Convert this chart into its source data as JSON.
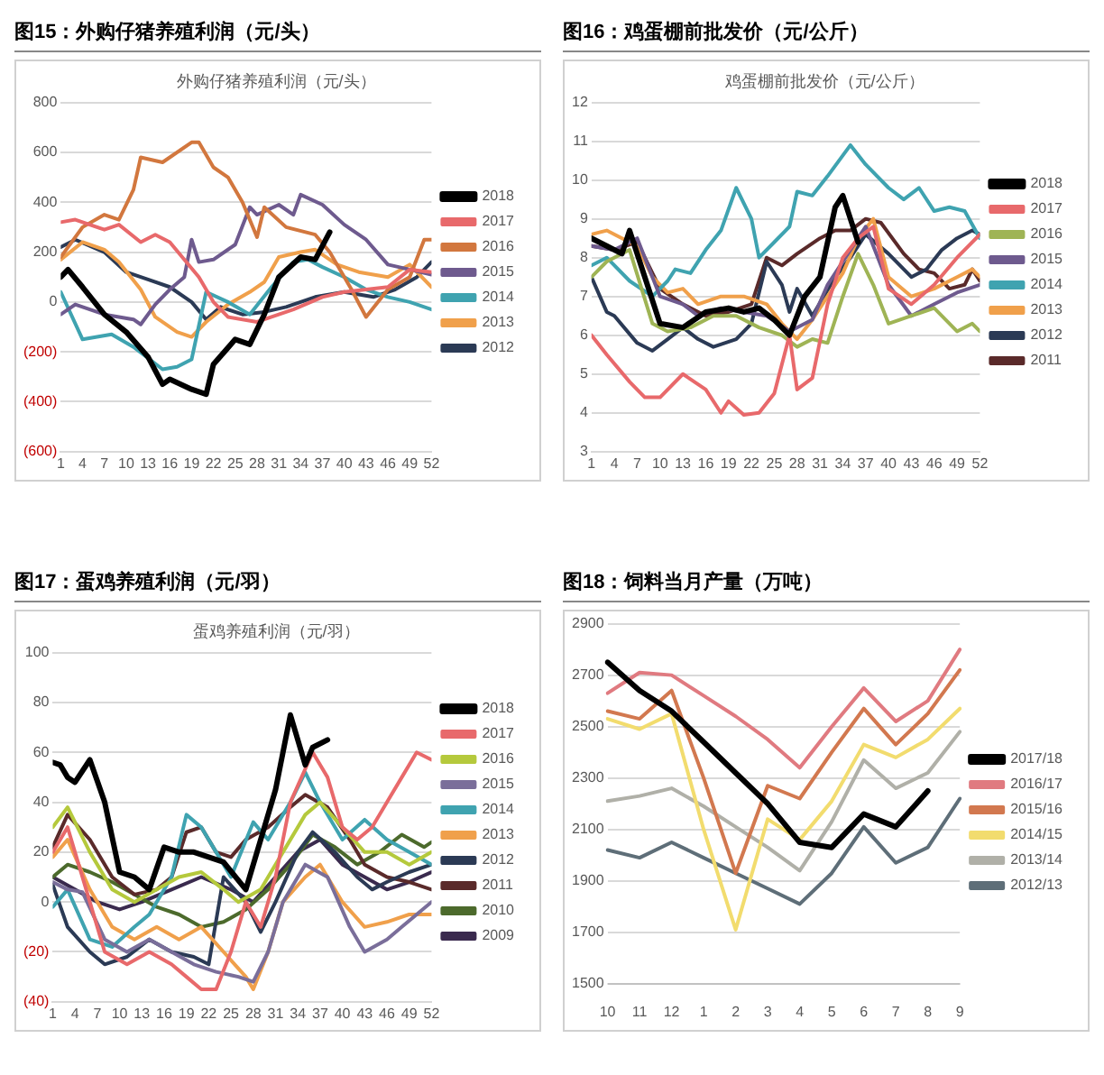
{
  "chart_data": [
    {
      "type": "line",
      "title": "图15：外购仔猪养殖利润（元/头）",
      "subtitle": "外购仔猪养殖利润（元/头）",
      "xlim": [
        1,
        52
      ],
      "xticks": [
        1,
        4,
        7,
        10,
        13,
        16,
        19,
        22,
        25,
        28,
        31,
        34,
        37,
        40,
        43,
        46,
        49,
        52
      ],
      "ylim": [
        -600,
        800
      ],
      "yticks": [
        {
          "value": -600,
          "label": "(600)"
        },
        {
          "value": -400,
          "label": "(400)"
        },
        {
          "value": -200,
          "label": "(200)"
        },
        0,
        200,
        400,
        600,
        800
      ],
      "grid": "y",
      "legend": "right",
      "series": [
        {
          "name": "2018",
          "color": "#000000",
          "x": [
            1,
            2,
            4,
            7,
            10,
            13,
            15,
            16,
            19,
            21,
            22,
            25,
            27,
            29,
            31,
            34,
            36,
            38
          ],
          "values": [
            100,
            130,
            60,
            -50,
            -120,
            -220,
            -330,
            -310,
            -350,
            -370,
            -250,
            -150,
            -170,
            -50,
            100,
            180,
            170,
            280
          ]
        },
        {
          "name": "2017",
          "color": "#e8696b",
          "x": [
            1,
            3,
            7,
            9,
            12,
            14,
            16,
            20,
            22,
            24,
            28,
            31,
            33,
            37,
            40,
            43,
            46,
            49,
            52
          ],
          "values": [
            320,
            330,
            290,
            310,
            240,
            270,
            240,
            100,
            0,
            -60,
            -80,
            -50,
            -30,
            20,
            40,
            50,
            60,
            130,
            120
          ]
        },
        {
          "name": "2016",
          "color": "#d2773e",
          "x": [
            1,
            4,
            7,
            9,
            11,
            12,
            15,
            19,
            20,
            22,
            24,
            26,
            28,
            29,
            32,
            36,
            38,
            41,
            43,
            46,
            49,
            51,
            52
          ],
          "values": [
            180,
            300,
            350,
            330,
            450,
            580,
            560,
            640,
            640,
            540,
            500,
            400,
            260,
            380,
            300,
            270,
            200,
            50,
            -60,
            50,
            100,
            250,
            250
          ]
        },
        {
          "name": "2015",
          "color": "#6e5a8e",
          "x": [
            1,
            3,
            7,
            11,
            12,
            14,
            16,
            18,
            19,
            20,
            22,
            25,
            27,
            28,
            31,
            33,
            34,
            37,
            40,
            43,
            46,
            49,
            52
          ],
          "values": [
            -50,
            -10,
            -50,
            -70,
            -90,
            -10,
            50,
            100,
            250,
            160,
            170,
            230,
            380,
            350,
            390,
            350,
            430,
            390,
            310,
            250,
            150,
            130,
            110
          ]
        },
        {
          "name": "2014",
          "color": "#3fa3b0",
          "x": [
            1,
            4,
            8,
            11,
            15,
            17,
            19,
            21,
            24,
            27,
            30,
            33,
            35,
            37,
            40,
            43,
            46,
            49,
            52
          ],
          "values": [
            40,
            -150,
            -130,
            -180,
            -270,
            -260,
            -230,
            40,
            0,
            -50,
            60,
            160,
            170,
            140,
            100,
            50,
            20,
            0,
            -30
          ]
        },
        {
          "name": "2013",
          "color": "#f0a04b",
          "x": [
            1,
            4,
            7,
            9,
            12,
            14,
            17,
            19,
            21,
            24,
            27,
            29,
            31,
            34,
            36,
            39,
            42,
            46,
            49,
            52
          ],
          "values": [
            170,
            240,
            210,
            160,
            50,
            -60,
            -120,
            -140,
            -80,
            -10,
            40,
            80,
            180,
            200,
            210,
            150,
            120,
            100,
            150,
            60
          ]
        },
        {
          "name": "2012",
          "color": "#2b3a55",
          "x": [
            1,
            3,
            7,
            10,
            13,
            16,
            19,
            21,
            23,
            26,
            29,
            32,
            36,
            40,
            44,
            47,
            50,
            52
          ],
          "values": [
            220,
            250,
            200,
            120,
            90,
            60,
            0,
            -70,
            -20,
            -50,
            -40,
            -20,
            20,
            40,
            20,
            50,
            100,
            160
          ]
        }
      ]
    },
    {
      "type": "line",
      "title": "图16：鸡蛋棚前批发价（元/公斤）",
      "subtitle": "鸡蛋棚前批发价（元/公斤）",
      "xlim": [
        1,
        52
      ],
      "xticks": [
        1,
        4,
        7,
        10,
        13,
        16,
        19,
        22,
        25,
        28,
        31,
        34,
        37,
        40,
        43,
        46,
        49,
        52
      ],
      "ylim": [
        3,
        12
      ],
      "yticks": [
        3,
        4,
        5,
        6,
        7,
        8,
        9,
        10,
        11,
        12
      ],
      "grid": "y",
      "legend": "right",
      "series": [
        {
          "name": "2018",
          "color": "#000000",
          "x": [
            1,
            3,
            5,
            6,
            8,
            10,
            13,
            16,
            19,
            21,
            23,
            25,
            27,
            29,
            31,
            33,
            34,
            36
          ],
          "values": [
            8.5,
            8.3,
            8.1,
            8.7,
            7.5,
            6.3,
            6.2,
            6.6,
            6.7,
            6.6,
            6.7,
            6.4,
            6.0,
            7.0,
            7.5,
            9.3,
            9.6,
            8.4
          ]
        },
        {
          "name": "2017",
          "color": "#e8696b",
          "x": [
            1,
            3,
            6,
            8,
            10,
            13,
            16,
            18,
            19,
            21,
            23,
            25,
            27,
            28,
            30,
            32,
            34,
            36,
            38,
            40,
            43,
            46,
            49,
            52
          ],
          "values": [
            6.0,
            5.5,
            4.8,
            4.4,
            4.4,
            5.0,
            4.6,
            4.0,
            4.3,
            3.95,
            4.0,
            4.5,
            6.0,
            4.6,
            4.9,
            6.8,
            8.0,
            8.5,
            8.8,
            7.2,
            6.8,
            7.3,
            8.0,
            8.6
          ]
        },
        {
          "name": "2016",
          "color": "#9fb455",
          "x": [
            1,
            3,
            6,
            9,
            11,
            14,
            17,
            20,
            23,
            26,
            28,
            30,
            32,
            34,
            36,
            38,
            40,
            43,
            46,
            49,
            51,
            52
          ],
          "values": [
            7.5,
            7.9,
            8.2,
            6.3,
            6.1,
            6.2,
            6.5,
            6.5,
            6.2,
            6.0,
            5.7,
            5.9,
            5.8,
            7.0,
            8.1,
            7.3,
            6.3,
            6.5,
            6.7,
            6.1,
            6.3,
            6.1
          ]
        },
        {
          "name": "2015",
          "color": "#6e5a8e",
          "x": [
            1,
            4,
            7,
            10,
            13,
            15,
            18,
            21,
            24,
            27,
            30,
            32,
            35,
            37,
            40,
            43,
            46,
            49,
            52
          ],
          "values": [
            8.3,
            8.2,
            8.5,
            7.0,
            6.8,
            6.5,
            6.7,
            6.6,
            6.5,
            6.1,
            6.4,
            7.3,
            8.2,
            8.8,
            7.3,
            6.5,
            6.8,
            7.1,
            7.3
          ]
        },
        {
          "name": "2014",
          "color": "#3fa3b0",
          "x": [
            1,
            3,
            6,
            9,
            11,
            12,
            14,
            16,
            18,
            20,
            22,
            23,
            25,
            27,
            28,
            30,
            32,
            35,
            37,
            40,
            42,
            44,
            46,
            48,
            50,
            52
          ],
          "values": [
            7.8,
            8.0,
            7.4,
            7.0,
            7.4,
            7.7,
            7.6,
            8.2,
            8.7,
            9.8,
            9.0,
            8.0,
            8.4,
            8.8,
            9.7,
            9.6,
            10.1,
            10.9,
            10.4,
            9.8,
            9.5,
            9.8,
            9.2,
            9.3,
            9.2,
            8.5
          ]
        },
        {
          "name": "2013",
          "color": "#f0a04b",
          "x": [
            1,
            3,
            5,
            7,
            9,
            11,
            13,
            15,
            18,
            21,
            24,
            26,
            28,
            30,
            32,
            34,
            36,
            38,
            40,
            43,
            46,
            49,
            51,
            52
          ],
          "values": [
            8.6,
            8.7,
            8.5,
            8.3,
            7.5,
            7.1,
            7.2,
            6.8,
            7.0,
            7.0,
            6.8,
            6.3,
            5.9,
            6.4,
            7.0,
            7.6,
            8.5,
            9.0,
            7.5,
            7.0,
            7.2,
            7.5,
            7.7,
            7.5
          ]
        },
        {
          "name": "2012",
          "color": "#2b3a55",
          "x": [
            1,
            3,
            4,
            7,
            9,
            11,
            13,
            15,
            17,
            20,
            22,
            24,
            26,
            27,
            28,
            30,
            33,
            35,
            37,
            40,
            43,
            45,
            47,
            49,
            51,
            52
          ],
          "values": [
            7.5,
            6.6,
            6.5,
            5.8,
            5.6,
            5.9,
            6.2,
            5.9,
            5.7,
            5.9,
            6.3,
            7.9,
            7.3,
            6.6,
            7.2,
            6.5,
            7.5,
            8.0,
            8.6,
            8.1,
            7.5,
            7.7,
            8.2,
            8.5,
            8.7,
            8.6
          ]
        },
        {
          "name": "2011",
          "color": "#5a2a2a",
          "x": [
            1,
            4,
            7,
            10,
            13,
            16,
            19,
            22,
            24,
            26,
            28,
            31,
            33,
            35,
            37,
            39,
            42,
            44,
            46,
            48,
            50,
            51,
            52
          ],
          "values": [
            8.3,
            8.2,
            8.4,
            7.2,
            6.8,
            6.5,
            6.6,
            6.8,
            8.0,
            7.8,
            8.1,
            8.5,
            8.7,
            8.7,
            9.0,
            8.9,
            8.1,
            7.7,
            7.6,
            7.2,
            7.3,
            7.7,
            7.4
          ]
        }
      ]
    },
    {
      "type": "line",
      "title": "图17：蛋鸡养殖利润（元/羽）",
      "subtitle": "蛋鸡养殖利润（元/羽）",
      "xlim": [
        1,
        52
      ],
      "xticks": [
        1,
        4,
        7,
        10,
        13,
        16,
        19,
        22,
        25,
        28,
        31,
        34,
        37,
        40,
        43,
        46,
        49,
        52
      ],
      "ylim": [
        -40,
        100
      ],
      "yticks": [
        {
          "value": -40,
          "label": "(40)"
        },
        {
          "value": -20,
          "label": "(20)"
        },
        0,
        20,
        40,
        60,
        80,
        100
      ],
      "grid": "y",
      "legend": "right",
      "series": [
        {
          "name": "2018",
          "color": "#000000",
          "x": [
            1,
            2,
            3,
            4,
            6,
            8,
            10,
            12,
            14,
            16,
            18,
            20,
            22,
            24,
            27,
            29,
            31,
            33,
            35,
            36,
            38
          ],
          "values": [
            56,
            55,
            50,
            48,
            57,
            40,
            12,
            10,
            5,
            22,
            20,
            20,
            18,
            16,
            5,
            25,
            45,
            75,
            55,
            62,
            65
          ]
        },
        {
          "name": "2017",
          "color": "#e8696b",
          "x": [
            1,
            3,
            6,
            8,
            11,
            14,
            17,
            19,
            21,
            23,
            25,
            27,
            29,
            31,
            33,
            36,
            38,
            40,
            42,
            44,
            46,
            48,
            50,
            52
          ],
          "values": [
            20,
            30,
            0,
            -20,
            -25,
            -20,
            -25,
            -30,
            -35,
            -35,
            -20,
            0,
            -10,
            10,
            40,
            60,
            50,
            30,
            25,
            30,
            40,
            50,
            60,
            57
          ]
        },
        {
          "name": "2016",
          "color": "#b5c93c",
          "x": [
            1,
            3,
            6,
            9,
            12,
            15,
            18,
            21,
            24,
            26,
            29,
            32,
            35,
            37,
            40,
            43,
            46,
            49,
            52
          ],
          "values": [
            30,
            38,
            20,
            5,
            0,
            5,
            10,
            12,
            5,
            0,
            5,
            20,
            35,
            40,
            30,
            20,
            20,
            15,
            20
          ]
        },
        {
          "name": "2015",
          "color": "#7a6e9a",
          "x": [
            1,
            3,
            5,
            8,
            11,
            14,
            17,
            20,
            23,
            26,
            28,
            30,
            32,
            35,
            38,
            41,
            43,
            46,
            48,
            50,
            52
          ],
          "values": [
            8,
            5,
            4,
            -15,
            -20,
            -15,
            -20,
            -25,
            -28,
            -30,
            -32,
            -20,
            0,
            15,
            10,
            -10,
            -20,
            -15,
            -10,
            -5,
            0
          ]
        },
        {
          "name": "2014",
          "color": "#3fa3b0",
          "x": [
            1,
            3,
            6,
            9,
            12,
            14,
            17,
            19,
            21,
            23,
            25,
            28,
            30,
            33,
            35,
            37,
            40,
            43,
            46,
            49,
            52
          ],
          "values": [
            -2,
            5,
            -15,
            -18,
            -10,
            -5,
            10,
            35,
            30,
            20,
            10,
            32,
            25,
            40,
            52,
            40,
            25,
            33,
            25,
            20,
            15
          ]
        },
        {
          "name": "2013",
          "color": "#f0a04b",
          "x": [
            1,
            3,
            6,
            9,
            12,
            15,
            18,
            21,
            24,
            27,
            28,
            30,
            32,
            35,
            37,
            40,
            43,
            46,
            49,
            52
          ],
          "values": [
            18,
            25,
            5,
            -10,
            -15,
            -10,
            -15,
            -10,
            -20,
            -30,
            -35,
            -20,
            0,
            10,
            15,
            0,
            -10,
            -8,
            -5,
            -5
          ]
        },
        {
          "name": "2012",
          "color": "#2b3a55",
          "x": [
            1,
            3,
            6,
            8,
            11,
            14,
            17,
            20,
            22,
            24,
            27,
            29,
            31,
            34,
            36,
            39,
            42,
            44,
            46,
            49,
            52
          ],
          "values": [
            7,
            -10,
            -20,
            -25,
            -22,
            -15,
            -20,
            -22,
            -25,
            10,
            0,
            -12,
            0,
            20,
            28,
            20,
            10,
            5,
            8,
            12,
            15
          ]
        },
        {
          "name": "2011",
          "color": "#5a2a2a",
          "x": [
            1,
            3,
            6,
            9,
            12,
            15,
            17,
            19,
            21,
            23,
            25,
            27,
            30,
            33,
            35,
            38,
            41,
            43,
            46,
            49,
            52
          ],
          "values": [
            22,
            35,
            25,
            10,
            3,
            5,
            10,
            28,
            30,
            20,
            18,
            25,
            30,
            38,
            43,
            38,
            25,
            15,
            10,
            8,
            5
          ]
        },
        {
          "name": "2010",
          "color": "#4c6a2c",
          "x": [
            1,
            3,
            6,
            9,
            12,
            15,
            18,
            21,
            24,
            27,
            30,
            33,
            36,
            39,
            42,
            45,
            48,
            51,
            52
          ],
          "values": [
            10,
            15,
            12,
            8,
            3,
            -2,
            -5,
            -10,
            -8,
            -3,
            5,
            15,
            27,
            22,
            15,
            20,
            27,
            22,
            24
          ]
        },
        {
          "name": "2009",
          "color": "#3a2a4e",
          "x": [
            1,
            4,
            7,
            10,
            13,
            17,
            21,
            25,
            28,
            31,
            34,
            37,
            40,
            43,
            46,
            49,
            52
          ],
          "values": [
            10,
            5,
            0,
            -3,
            0,
            5,
            10,
            5,
            0,
            10,
            20,
            25,
            15,
            10,
            5,
            8,
            12
          ]
        }
      ]
    },
    {
      "type": "line",
      "title": "图18：饲料当月产量（万吨）",
      "categories": [
        "10",
        "11",
        "12",
        "1",
        "2",
        "3",
        "4",
        "5",
        "6",
        "7",
        "8",
        "9"
      ],
      "ylim": [
        1500,
        2900
      ],
      "yticks": [
        1500,
        1700,
        1900,
        2100,
        2300,
        2500,
        2700,
        2900
      ],
      "grid": "y",
      "legend": "right",
      "series": [
        {
          "name": "2017/18",
          "color": "#000000",
          "values": [
            2750,
            2640,
            2560,
            2440,
            2320,
            2200,
            2050,
            2030,
            2160,
            2110,
            2250,
            null
          ]
        },
        {
          "name": "2016/17",
          "color": "#e07a80",
          "values": [
            2630,
            2710,
            2700,
            2620,
            2540,
            2450,
            2340,
            2500,
            2650,
            2520,
            2600,
            2800
          ]
        },
        {
          "name": "2015/16",
          "color": "#d2784f",
          "values": [
            2560,
            2530,
            2640,
            2300,
            1930,
            2270,
            2220,
            2400,
            2570,
            2430,
            2550,
            2720
          ]
        },
        {
          "name": "2014/15",
          "color": "#f2dc6e",
          "values": [
            2530,
            2490,
            2550,
            2100,
            1710,
            2140,
            2060,
            2210,
            2430,
            2380,
            2450,
            2570
          ]
        },
        {
          "name": "2013/14",
          "color": "#b0b0a8",
          "values": [
            2210,
            2230,
            2260,
            2190,
            2110,
            2030,
            1940,
            2130,
            2370,
            2260,
            2320,
            2480
          ]
        },
        {
          "name": "2012/13",
          "color": "#5e6e78",
          "values": [
            2020,
            1990,
            2050,
            1990,
            1930,
            1870,
            1810,
            1930,
            2110,
            1970,
            2030,
            2220
          ]
        }
      ]
    }
  ]
}
